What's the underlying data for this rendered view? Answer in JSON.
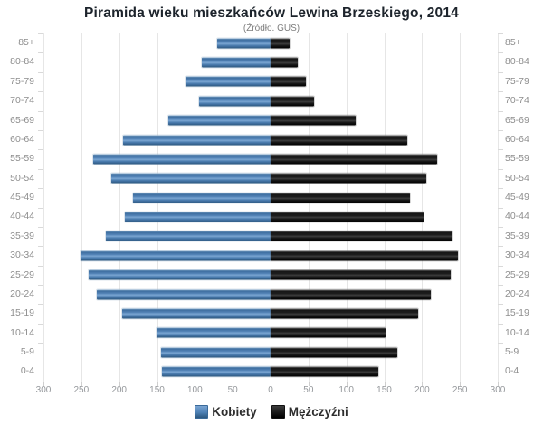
{
  "title": "Piramida wieku mieszkańców Lewina Brzeskiego, 2014",
  "subtitle": "(Źródło. GUS)",
  "chart_data": {
    "type": "bar",
    "variant": "population-pyramid",
    "title": "Piramida wieku mieszkańców Lewina Brzeskiego, 2014",
    "subtitle": "(Źródło. GUS)",
    "categories": [
      "85+",
      "80-84",
      "75-79",
      "70-74",
      "65-69",
      "60-64",
      "55-59",
      "50-54",
      "45-49",
      "40-44",
      "35-39",
      "30-34",
      "25-29",
      "20-24",
      "15-19",
      "10-14",
      "5-9",
      "0-4"
    ],
    "series": [
      {
        "name": "Kobiety",
        "side": "left",
        "color": "#4e81b5",
        "values": [
          71,
          91,
          112,
          94,
          135,
          195,
          234,
          210,
          182,
          192,
          218,
          251,
          240,
          230,
          196,
          151,
          145,
          144
        ]
      },
      {
        "name": "Mężczyźni",
        "side": "right",
        "color": "#1a1a1a",
        "values": [
          25,
          36,
          47,
          57,
          112,
          180,
          220,
          205,
          184,
          202,
          240,
          247,
          238,
          212,
          195,
          152,
          167,
          142
        ]
      }
    ],
    "xlim": [
      0,
      300
    ],
    "x_tick_step": 50,
    "x_tick_labels": [
      "300",
      "250",
      "200",
      "150",
      "100",
      "50",
      "0",
      "50",
      "100",
      "150",
      "200",
      "250",
      "300"
    ],
    "grid": true,
    "legend_position": "bottom"
  },
  "legend": {
    "items": [
      {
        "label": "Kobiety",
        "color": "#4e81b5"
      },
      {
        "label": "Mężczyźni",
        "color": "#1a1a1a"
      }
    ]
  }
}
